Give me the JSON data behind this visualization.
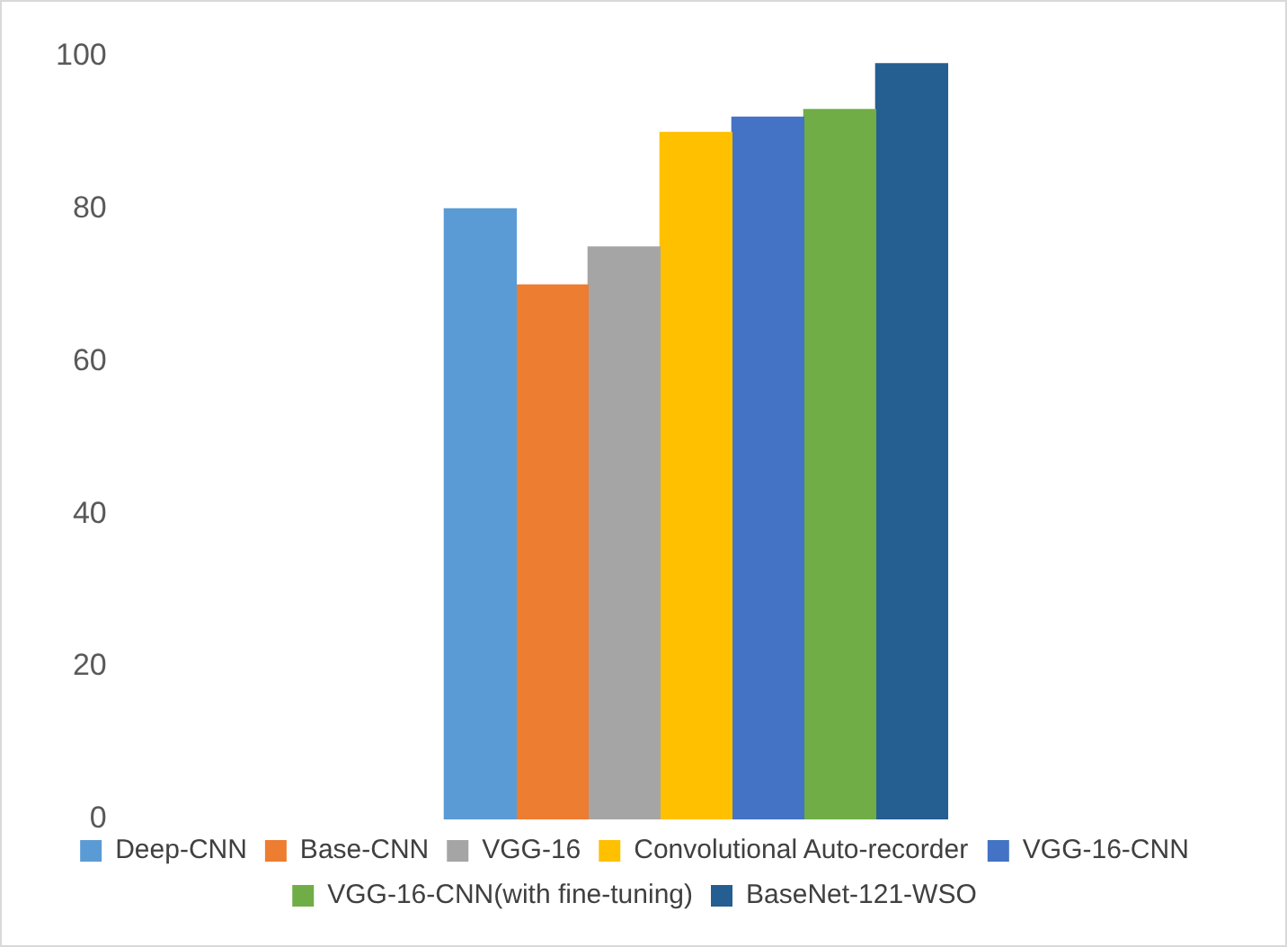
{
  "chart_data": {
    "type": "bar",
    "categories": [
      null
    ],
    "series": [
      {
        "name": "Deep-CNN",
        "color": "#5b9bd5",
        "values": [
          80
        ]
      },
      {
        "name": "Base-CNN",
        "color": "#ed7d31",
        "values": [
          70
        ]
      },
      {
        "name": "VGG-16",
        "color": "#a5a5a5",
        "values": [
          75
        ]
      },
      {
        "name": "Convolutional Auto-recorder",
        "color": "#ffc000",
        "values": [
          90
        ]
      },
      {
        "name": "VGG-16-CNN",
        "color": "#4472c4",
        "values": [
          92
        ]
      },
      {
        "name": "VGG-16-CNN(with fine-tuning)",
        "color": "#70ad47",
        "values": [
          93
        ]
      },
      {
        "name": "BaseNet-121-WSO",
        "color": "#255e91",
        "values": [
          99
        ]
      }
    ],
    "ylim": [
      0,
      100
    ],
    "yticks": [
      0,
      20,
      40,
      60,
      80,
      100
    ],
    "grid": false,
    "legend": "bottom",
    "tick_labels": "y"
  }
}
